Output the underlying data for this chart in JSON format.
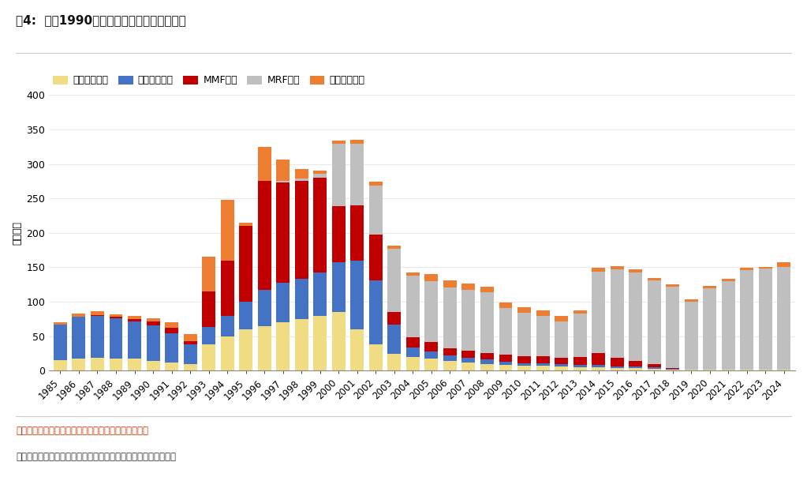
{
  "title": "图4:  日本1990年代固收类基金内部结构变化",
  "ylabel": "千亿日元",
  "source_text": "数据来源：日本投资信托协会，广发证券发展研究中心",
  "note_text": "注释：内外债券基金是主要投资全球和日本国内债券市场的基金。",
  "years": [
    1985,
    1986,
    1987,
    1988,
    1989,
    1990,
    1991,
    1992,
    1993,
    1994,
    1995,
    1996,
    1997,
    1998,
    1999,
    2000,
    2001,
    2002,
    2003,
    2004,
    2005,
    2006,
    2007,
    2008,
    2009,
    2010,
    2011,
    2012,
    2013,
    2014,
    2015,
    2016,
    2017,
    2018,
    2019,
    2020,
    2021,
    2022,
    2023,
    2024
  ],
  "long_term": [
    15,
    18,
    19,
    18,
    17,
    14,
    12,
    10,
    38,
    50,
    60,
    65,
    70,
    75,
    80,
    85,
    60,
    38,
    25,
    20,
    18,
    14,
    12,
    10,
    8,
    7,
    7,
    6,
    5,
    5,
    4,
    4,
    3,
    2,
    1,
    1,
    1,
    1,
    1,
    1
  ],
  "medium_term": [
    52,
    60,
    60,
    58,
    55,
    52,
    42,
    28,
    25,
    30,
    40,
    52,
    58,
    58,
    62,
    72,
    100,
    93,
    42,
    14,
    10,
    8,
    7,
    6,
    5,
    4,
    4,
    4,
    3,
    3,
    2,
    2,
    2,
    1,
    1,
    1,
    1,
    1,
    1,
    1
  ],
  "mmf": [
    0,
    0,
    2,
    2,
    3,
    5,
    8,
    5,
    52,
    80,
    110,
    158,
    145,
    142,
    138,
    82,
    80,
    66,
    18,
    14,
    14,
    11,
    10,
    10,
    10,
    10,
    10,
    9,
    12,
    18,
    13,
    8,
    4,
    1,
    0,
    0,
    0,
    0,
    0,
    0
  ],
  "mrf": [
    0,
    0,
    0,
    0,
    0,
    0,
    0,
    0,
    0,
    0,
    0,
    0,
    2,
    4,
    6,
    90,
    90,
    72,
    92,
    90,
    88,
    88,
    88,
    88,
    68,
    63,
    58,
    53,
    63,
    118,
    128,
    128,
    122,
    118,
    98,
    118,
    128,
    144,
    146,
    148
  ],
  "intl_bond": [
    3,
    5,
    5,
    4,
    4,
    5,
    8,
    10,
    50,
    88,
    5,
    50,
    32,
    14,
    4,
    5,
    5,
    5,
    4,
    4,
    10,
    10,
    10,
    8,
    8,
    8,
    8,
    8,
    5,
    5,
    5,
    5,
    3,
    3,
    3,
    3,
    3,
    3,
    3,
    8
  ],
  "colors": {
    "长期债券基金": "#F0DC82",
    "中期债券基金": "#4472C4",
    "MMF基金": "#C00000",
    "MRF基金": "#BFBFBF",
    "内外债券基金": "#ED7D31"
  },
  "legend_order": [
    "长期债券基金",
    "中期债券基金",
    "MMF基金",
    "MRF基金",
    "内外债券基金"
  ],
  "ylim": [
    0,
    400
  ],
  "yticks": [
    0,
    50,
    100,
    150,
    200,
    250,
    300,
    350,
    400
  ]
}
